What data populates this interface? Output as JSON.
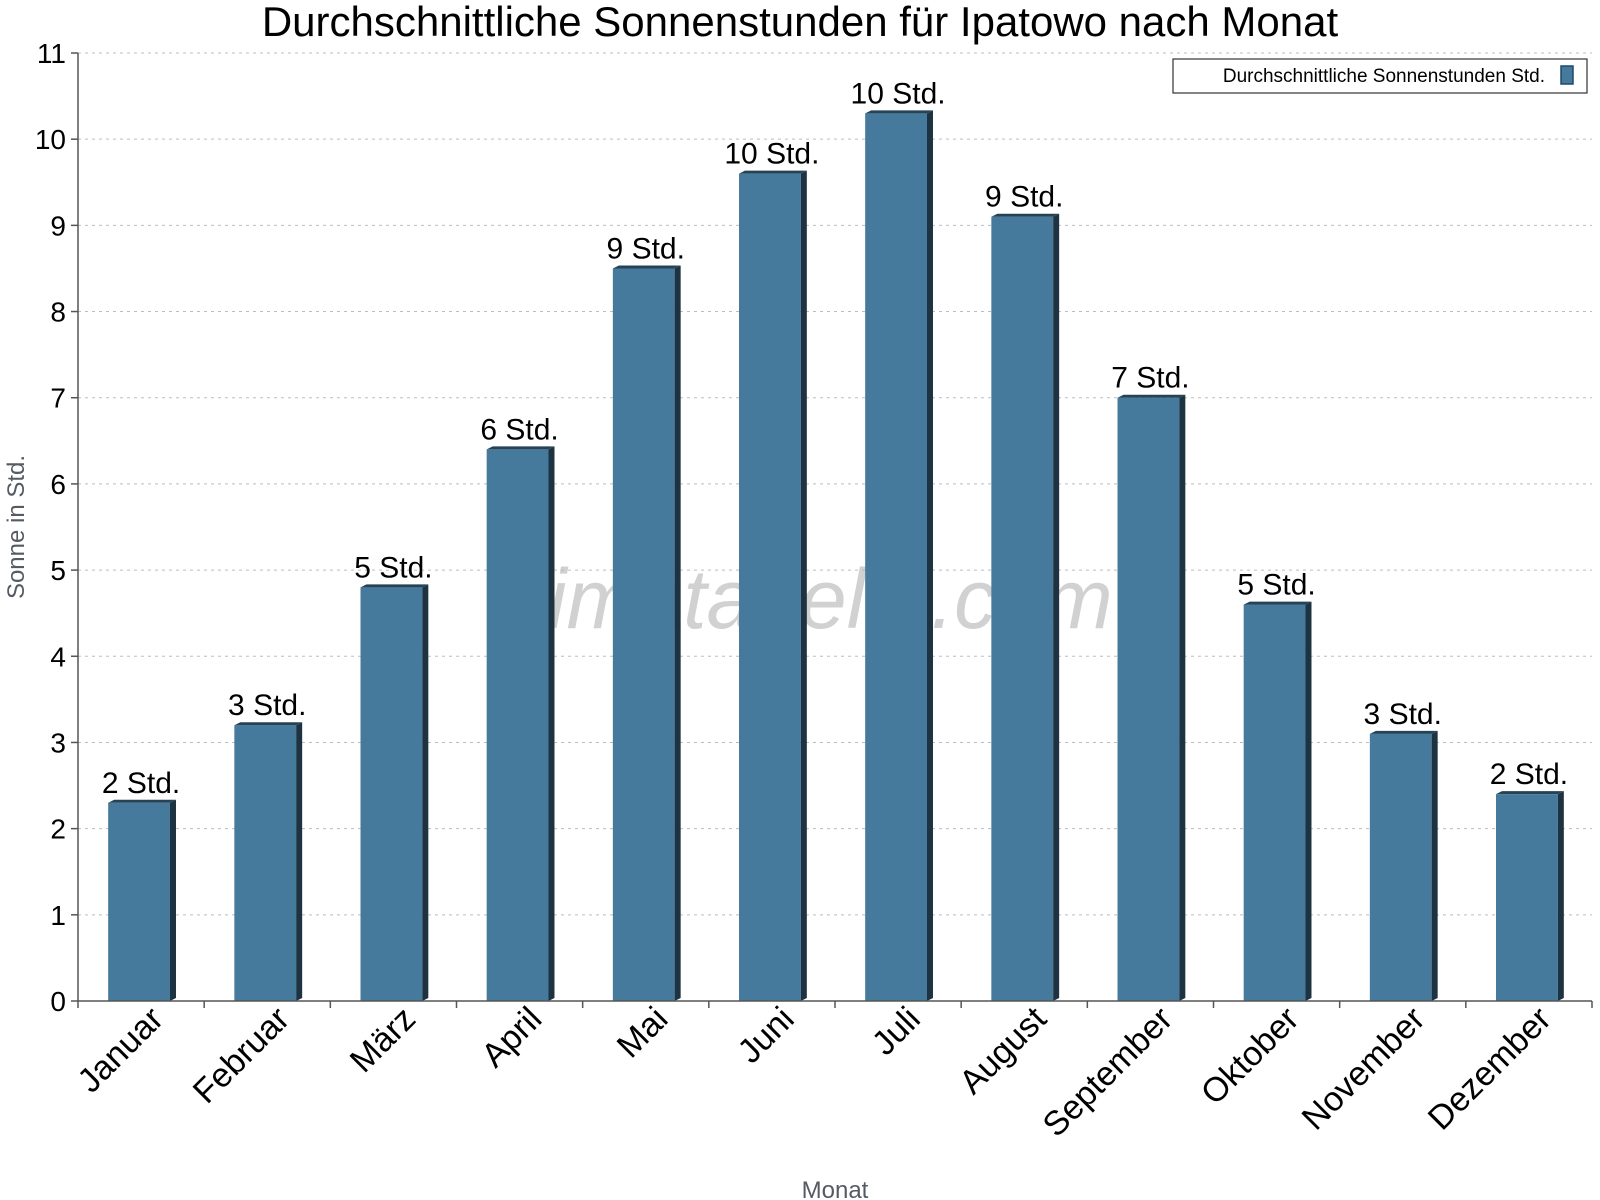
{
  "chart_data": {
    "type": "bar",
    "title": "Durchschnittliche Sonnenstunden für Ipatowo nach Monat",
    "xlabel": "Monat",
    "ylabel": "Sonne in Std.",
    "ylim": [
      0,
      11
    ],
    "yticks": [
      "0",
      "1",
      "2",
      "3",
      "4",
      "5",
      "6",
      "7",
      "8",
      "9",
      "10",
      "11"
    ],
    "grid": true,
    "legend_position": "top-right",
    "categories": [
      "Januar",
      "Februar",
      "März",
      "April",
      "Mai",
      "Juni",
      "Juli",
      "August",
      "September",
      "Oktober",
      "November",
      "Dezember"
    ],
    "series": [
      {
        "name": "Durchschnittliche Sonnenstunden Std.",
        "color": "#457a9c",
        "values": [
          2.3,
          3.2,
          4.8,
          6.4,
          8.5,
          9.6,
          10.3,
          9.1,
          7.0,
          4.6,
          3.1,
          2.4
        ],
        "labels": [
          "2 Std.",
          "3 Std.",
          "5 Std.",
          "6 Std.",
          "9 Std.",
          "10 Std.",
          "10 Std.",
          "9 Std.",
          "7 Std.",
          "5 Std.",
          "3 Std.",
          "2 Std."
        ]
      }
    ],
    "watermark": "klimatabelle.com"
  }
}
